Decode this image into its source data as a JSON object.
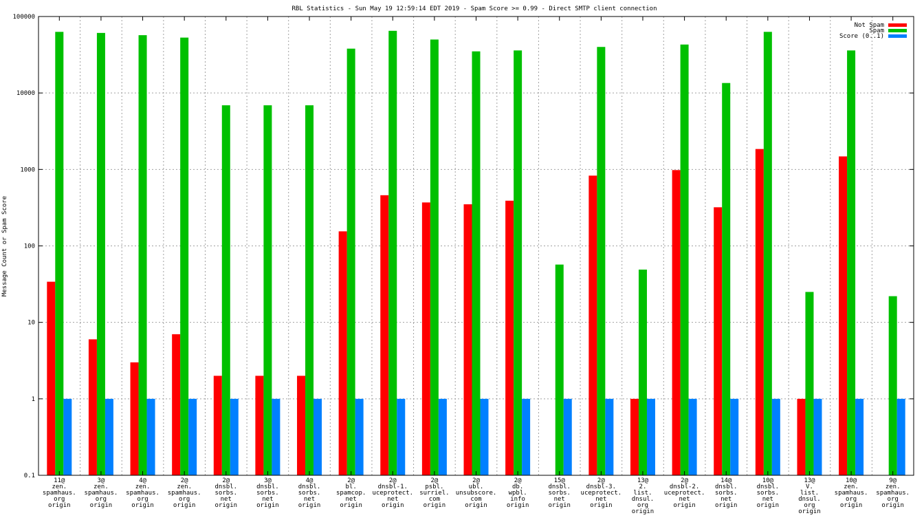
{
  "chart_data": {
    "type": "bar",
    "title": "RBL Statistics - Sun May 19 12:59:14 EDT 2019 - Spam Score >= 0.99 - Direct SMTP client connection",
    "ylabel": "Message Count or Spam Score",
    "xlabel": "",
    "yscale": "log",
    "ylim": [
      0.1,
      100000
    ],
    "yticks": [
      "0.1",
      "1",
      "10",
      "100",
      "1000",
      "10000",
      "100000"
    ],
    "grid": true,
    "legend_position": "top-right",
    "categories": [
      [
        "11@",
        "zen.",
        "spamhaus.",
        "org",
        "origin"
      ],
      [
        "3@",
        "zen.",
        "spamhaus.",
        "org",
        "origin"
      ],
      [
        "4@",
        "zen.",
        "spamhaus.",
        "org",
        "origin"
      ],
      [
        "2@",
        "zen.",
        "spamhaus.",
        "org",
        "origin"
      ],
      [
        "2@",
        "dnsbl.",
        "sorbs.",
        "net",
        "origin"
      ],
      [
        "3@",
        "dnsbl.",
        "sorbs.",
        "net",
        "origin"
      ],
      [
        "4@",
        "dnsbl.",
        "sorbs.",
        "net",
        "origin"
      ],
      [
        "2@",
        "bl.",
        "spamcop.",
        "net",
        "origin"
      ],
      [
        "2@",
        "dnsbl-1.",
        "uceprotect.",
        "net",
        "origin"
      ],
      [
        "2@",
        "psbl.",
        "surriel.",
        "com",
        "origin"
      ],
      [
        "2@",
        "ubl.",
        "unsubscore.",
        "com",
        "origin"
      ],
      [
        "2@",
        "db.",
        "wpbl.",
        "info",
        "origin"
      ],
      [
        "15@",
        "dnsbl.",
        "sorbs.",
        "net",
        "origin"
      ],
      [
        "2@",
        "dnsbl-3.",
        "uceprotect.",
        "net",
        "origin"
      ],
      [
        "13@",
        "2.",
        "list.",
        "dnsul.",
        "org",
        "origin"
      ],
      [
        "2@",
        "dnsbl-2.",
        "uceprotect.",
        "net",
        "origin"
      ],
      [
        "14@",
        "dnsbl.",
        "sorbs.",
        "net",
        "origin"
      ],
      [
        "10@",
        "dnsbl.",
        "sorbs.",
        "net",
        "origin"
      ],
      [
        "13@",
        "V.",
        "list.",
        "dnsul.",
        "org",
        "origin"
      ],
      [
        "10@",
        "zen.",
        "spamhaus.",
        "org",
        "origin"
      ],
      [
        "9@",
        "zen.",
        "spamhaus.",
        "org",
        "origin"
      ]
    ],
    "series": [
      {
        "name": "Not Spam",
        "color": "#ff0000",
        "values": [
          34,
          6,
          3,
          7,
          2,
          2,
          2,
          155,
          460,
          370,
          350,
          390,
          null,
          830,
          1,
          980,
          320,
          1850,
          1,
          1480,
          null
        ]
      },
      {
        "name": "Spam",
        "color": "#00c000",
        "values": [
          63000,
          61000,
          57000,
          53000,
          6900,
          6900,
          6900,
          38000,
          65000,
          50000,
          35000,
          36000,
          57,
          40000,
          49,
          43000,
          13500,
          63000,
          25,
          36000,
          22
        ]
      },
      {
        "name": "Score (0..1)",
        "color": "#0080ff",
        "values": [
          1,
          1,
          1,
          1,
          1,
          1,
          1,
          1,
          1,
          1,
          1,
          1,
          1,
          1,
          1,
          1,
          1,
          1,
          1,
          1,
          1
        ]
      }
    ]
  }
}
